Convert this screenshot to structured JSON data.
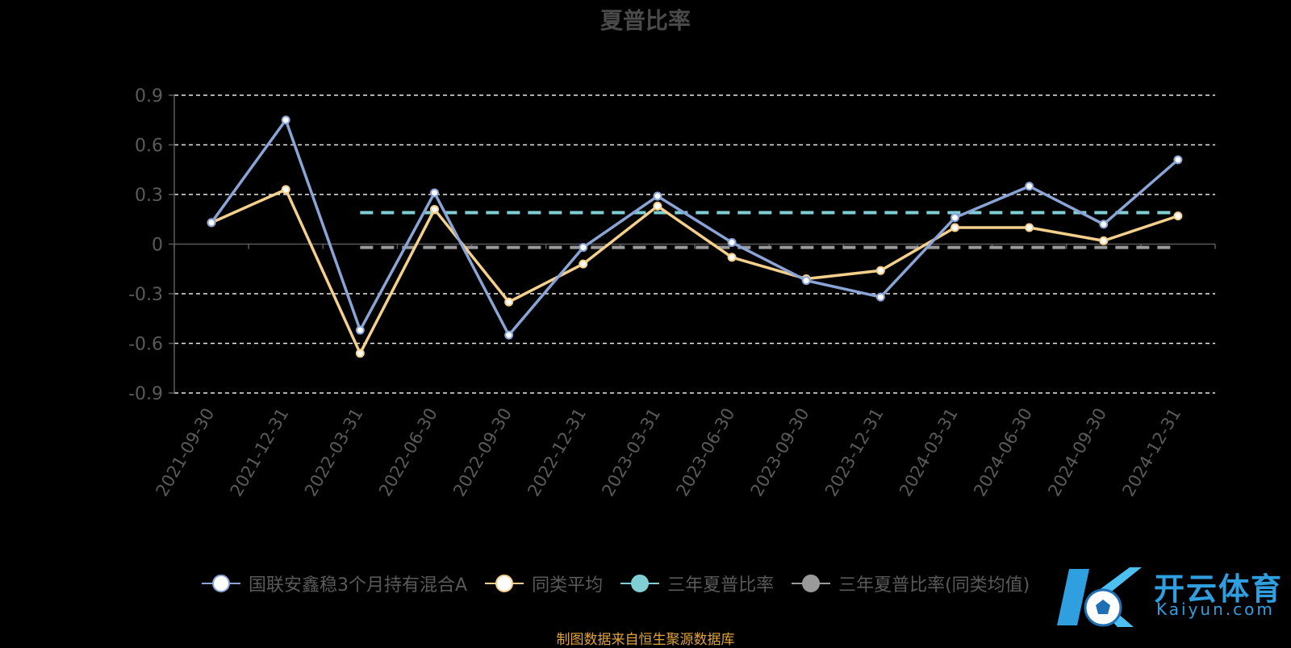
{
  "title": "夏普比率",
  "source_note": "制图数据来自恒生聚源数据库",
  "logo": {
    "cn": "开云体育",
    "en": "Kaiyun.com"
  },
  "legend": [
    {
      "label": "国联安鑫稳3个月持有混合A",
      "line_color": "#8aa4d6",
      "dot_fill": "#ffffff",
      "dot_border": "#8aa4d6"
    },
    {
      "label": "同类平均",
      "line_color": "#f5d08c",
      "dot_fill": "#ffffff",
      "dot_border": "#f5d08c"
    },
    {
      "label": "三年夏普比率",
      "line_color": "#7fcfd4",
      "dot_fill": "#7fcfd4",
      "dot_border": "#7fcfd4"
    },
    {
      "label": "三年夏普比率(同类均值)",
      "line_color": "#9a9a9a",
      "dot_fill": "#9a9a9a",
      "dot_border": "#9a9a9a"
    }
  ],
  "chart_data": {
    "type": "line",
    "title": "夏普比率",
    "categories": [
      "2021-09-30",
      "2021-12-31",
      "2022-03-31",
      "2022-06-30",
      "2022-09-30",
      "2022-12-31",
      "2023-03-31",
      "2023-06-30",
      "2023-09-30",
      "2023-12-31",
      "2024-03-31",
      "2024-06-30",
      "2024-09-30",
      "2024-12-31"
    ],
    "ylim": [
      -0.9,
      0.9
    ],
    "yticks": [
      "0.9",
      "0.6",
      "0.3",
      "0",
      "-0.3",
      "-0.6",
      "-0.9"
    ],
    "series": [
      {
        "name": "国联安鑫稳3个月持有混合A",
        "color": "#8aa4d6",
        "values": [
          0.13,
          0.75,
          -0.52,
          0.31,
          -0.55,
          -0.02,
          0.29,
          0.01,
          -0.22,
          -0.32,
          0.16,
          0.35,
          0.12,
          0.51
        ]
      },
      {
        "name": "同类平均",
        "color": "#f5d08c",
        "values": [
          0.13,
          0.33,
          -0.66,
          0.21,
          -0.35,
          -0.12,
          0.23,
          -0.08,
          -0.21,
          -0.16,
          0.1,
          0.1,
          0.02,
          0.17
        ]
      }
    ],
    "reference_lines": [
      {
        "name": "三年夏普比率",
        "value": 0.19,
        "color": "#7fcfd4",
        "from": "2022-03-31",
        "to": "2024-12-31"
      },
      {
        "name": "三年夏普比率(同类均值)",
        "value": -0.02,
        "color": "#9a9a9a",
        "from": "2022-03-31",
        "to": "2024-12-31"
      }
    ],
    "grid": true,
    "legend_position": "bottom"
  }
}
